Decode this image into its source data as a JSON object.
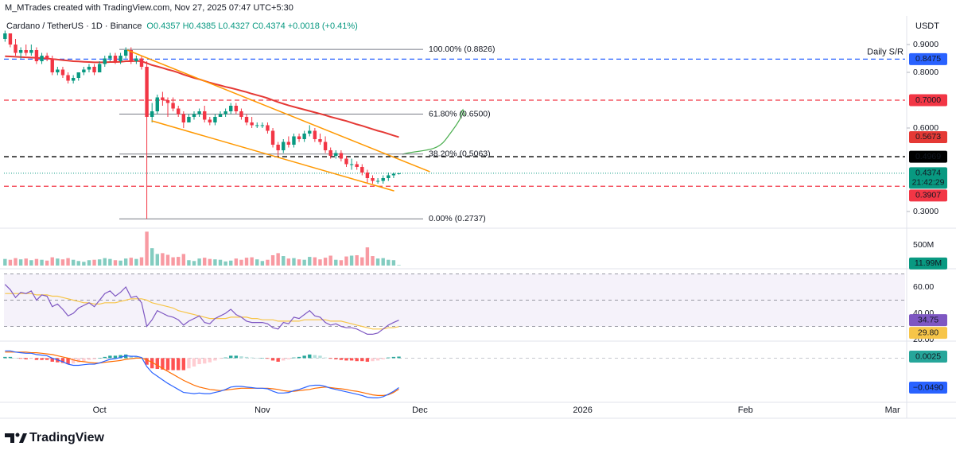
{
  "header": {
    "attribution": "M_MTrades created with TradingView.com, Nov 27, 2025 07:47 UTC+5:30",
    "symbol": "Cardano / TetherUS · 1D · Binance",
    "ohlc": "O0.4357 H0.4385 L0.4327 C0.4374 +0.0018 (+0.41%)",
    "logo": "TradingView"
  },
  "chart_data": {
    "type": "candlestick",
    "currency": "USDT",
    "categories": [
      null,
      null,
      null,
      null,
      null,
      null,
      null,
      null,
      null,
      null,
      null,
      null,
      null,
      null,
      null,
      null,
      null,
      null,
      null,
      null,
      null,
      null,
      null,
      null,
      null,
      null,
      null,
      null,
      null,
      null,
      null,
      null,
      null,
      null,
      null,
      null,
      null,
      null,
      null,
      null,
      null,
      null,
      null,
      null,
      null,
      null,
      null,
      null,
      null,
      null,
      null,
      null,
      null,
      null,
      null,
      null,
      null,
      null,
      null,
      null,
      null,
      null,
      null,
      null,
      null,
      null,
      null,
      null,
      null,
      null,
      null,
      null,
      null,
      null,
      null,
      null
    ],
    "xlim": [
      -0.2,
      171.4
    ],
    "xticks": [
      {
        "value": 18,
        "label": "Oct"
      },
      {
        "value": 49,
        "label": "Nov"
      },
      {
        "value": 79,
        "label": "Dec"
      },
      {
        "value": 110,
        "label": "2026"
      },
      {
        "value": 141,
        "label": "Feb"
      },
      {
        "value": 169,
        "label": "Mar"
      }
    ],
    "open": [
      0.92,
      0.94,
      0.9,
      0.87,
      0.88,
      0.87,
      0.88,
      0.84,
      0.86,
      0.85,
      0.8,
      0.81,
      0.79,
      0.77,
      0.78,
      0.8,
      0.81,
      0.82,
      0.8,
      0.83,
      0.85,
      0.86,
      0.84,
      0.86,
      0.88,
      0.84,
      0.85,
      0.82,
      0.64,
      0.66,
      0.71,
      0.7,
      0.69,
      0.67,
      0.65,
      0.62,
      0.64,
      0.65,
      0.66,
      0.63,
      0.62,
      0.64,
      0.65,
      0.66,
      0.68,
      0.66,
      0.64,
      0.62,
      0.61,
      0.61,
      0.61,
      0.59,
      0.54,
      0.52,
      0.55,
      0.54,
      0.57,
      0.56,
      0.58,
      0.59,
      0.56,
      0.55,
      0.52,
      0.5,
      0.51,
      0.49,
      0.47,
      0.47,
      0.46,
      0.44,
      0.42,
      0.41,
      0.41,
      0.42,
      0.43,
      0.4357
    ],
    "high": [
      0.95,
      0.94,
      0.92,
      0.89,
      0.9,
      0.9,
      0.89,
      0.87,
      0.87,
      0.86,
      0.82,
      0.82,
      0.8,
      0.79,
      0.8,
      0.82,
      0.83,
      0.83,
      0.84,
      0.86,
      0.87,
      0.87,
      0.87,
      0.89,
      0.89,
      0.86,
      0.86,
      0.84,
      0.69,
      0.72,
      0.73,
      0.71,
      0.71,
      0.68,
      0.66,
      0.65,
      0.66,
      0.67,
      0.68,
      0.64,
      0.65,
      0.66,
      0.67,
      0.69,
      0.69,
      0.67,
      0.65,
      0.64,
      0.62,
      0.62,
      0.62,
      0.6,
      0.55,
      0.56,
      0.57,
      0.58,
      0.58,
      0.59,
      0.61,
      0.6,
      0.58,
      0.57,
      0.53,
      0.52,
      0.52,
      0.5,
      0.49,
      0.48,
      0.47,
      0.45,
      0.43,
      0.42,
      0.43,
      0.44,
      0.44,
      0.4385
    ],
    "low": [
      0.91,
      0.89,
      0.86,
      0.85,
      0.86,
      0.86,
      0.83,
      0.83,
      0.84,
      0.79,
      0.79,
      0.78,
      0.76,
      0.76,
      0.77,
      0.79,
      0.8,
      0.79,
      0.8,
      0.82,
      0.84,
      0.83,
      0.83,
      0.85,
      0.83,
      0.83,
      0.81,
      0.2737,
      0.62,
      0.65,
      0.68,
      0.64,
      0.66,
      0.64,
      0.6,
      0.62,
      0.63,
      0.64,
      0.62,
      0.61,
      0.61,
      0.64,
      0.64,
      0.65,
      0.65,
      0.63,
      0.61,
      0.6,
      0.6,
      0.6,
      0.58,
      0.53,
      0.5,
      0.51,
      0.53,
      0.53,
      0.55,
      0.55,
      0.57,
      0.55,
      0.54,
      0.51,
      0.49,
      0.49,
      0.48,
      0.46,
      0.45,
      0.45,
      0.43,
      0.4,
      0.4,
      0.4,
      0.4,
      0.41,
      0.42,
      0.4327
    ],
    "close": [
      0.94,
      0.9,
      0.87,
      0.88,
      0.87,
      0.88,
      0.84,
      0.86,
      0.85,
      0.8,
      0.81,
      0.79,
      0.77,
      0.78,
      0.8,
      0.81,
      0.82,
      0.8,
      0.83,
      0.85,
      0.86,
      0.84,
      0.86,
      0.88,
      0.84,
      0.85,
      0.82,
      0.64,
      0.66,
      0.71,
      0.7,
      0.69,
      0.67,
      0.65,
      0.62,
      0.64,
      0.65,
      0.66,
      0.63,
      0.62,
      0.64,
      0.65,
      0.66,
      0.68,
      0.66,
      0.64,
      0.62,
      0.61,
      0.61,
      0.61,
      0.59,
      0.54,
      0.52,
      0.55,
      0.54,
      0.57,
      0.56,
      0.58,
      0.59,
      0.56,
      0.55,
      0.52,
      0.5,
      0.51,
      0.49,
      0.47,
      0.47,
      0.46,
      0.44,
      0.42,
      0.41,
      0.41,
      0.42,
      0.43,
      0.4357,
      0.4374
    ],
    "up_color": "#089981",
    "down_color": "#f23645",
    "ylim": [
      0.2457,
      0.98
    ],
    "yticks": [
      {
        "value": 0.9,
        "label": "0.9000"
      },
      {
        "value": 0.8,
        "label": "0.8000"
      },
      {
        "value": 0.6,
        "label": "0.6000"
      },
      {
        "value": 0.3,
        "label": "0.3000"
      }
    ],
    "ema": {
      "color": "#e53935",
      "values": [
        0.858,
        0.857,
        0.856,
        0.855,
        0.854,
        0.853,
        0.852,
        0.851,
        0.85,
        0.848,
        0.846,
        0.844,
        0.842,
        0.84,
        0.839,
        0.838,
        0.837,
        0.836,
        0.836,
        0.836,
        0.837,
        0.837,
        0.838,
        0.84,
        0.84,
        0.841,
        0.84,
        0.833,
        0.826,
        0.821,
        0.816,
        0.81,
        0.805,
        0.799,
        0.792,
        0.786,
        0.78,
        0.775,
        0.769,
        0.763,
        0.758,
        0.753,
        0.748,
        0.744,
        0.739,
        0.734,
        0.729,
        0.723,
        0.718,
        0.713,
        0.707,
        0.7,
        0.693,
        0.687,
        0.681,
        0.676,
        0.671,
        0.666,
        0.661,
        0.656,
        0.651,
        0.646,
        0.64,
        0.635,
        0.63,
        0.625,
        0.619,
        0.613,
        0.608,
        0.602,
        0.596,
        0.59,
        0.585,
        0.579,
        0.573,
        0.5673
      ],
      "last": {
        "value": 0.5673,
        "label": "0.5673"
      }
    },
    "levels": [
      {
        "value": 0.8475,
        "label": "0.8475",
        "color": "#2962ff",
        "annotation": "Daily S/R"
      },
      {
        "value": 0.7,
        "label": "0.7000",
        "color": "#f23645"
      },
      {
        "value": 0.4969,
        "label": "0.4969",
        "color": "#000000"
      },
      {
        "value": 0.3907,
        "label": "0.3907",
        "color": "#f23645"
      }
    ],
    "fib": {
      "color": "#787b86",
      "lines": [
        {
          "value": 0.8826,
          "label": "100.00% (0.8826)"
        },
        {
          "value": 0.65,
          "label": "61.80% (0.6500)"
        },
        {
          "value": 0.5063,
          "label": "38.20% (0.5063)"
        },
        {
          "value": 0.2737,
          "label": "0.00% (0.2737)"
        }
      ]
    },
    "trendlines": {
      "color": "#ff9800",
      "lines": [
        {
          "x": [
            23.3,
            80.9
          ],
          "y": [
            0.88,
            0.443
          ]
        },
        {
          "x": [
            27.9,
            74.1
          ],
          "y": [
            0.626,
            0.374
          ]
        }
      ]
    },
    "last": {
      "value": 0.4374,
      "label": "0.4374",
      "countdown": "21:42:29",
      "color": "#089981"
    },
    "volume": {
      "ylim": [
        0,
        846
      ],
      "up_color": "rgba(8,153,129,0.5)",
      "down_color": "rgba(242,54,69,0.5)",
      "values": [
        160,
        140,
        180,
        150,
        170,
        130,
        160,
        140,
        120,
        200,
        170,
        150,
        180,
        140,
        110,
        90,
        130,
        140,
        150,
        180,
        160,
        130,
        120,
        170,
        190,
        160,
        200,
        820,
        420,
        280,
        300,
        260,
        200,
        210,
        280,
        130,
        110,
        170,
        190,
        160,
        150,
        140,
        100,
        120,
        170,
        140,
        190,
        200,
        150,
        110,
        140,
        250,
        300,
        230,
        170,
        180,
        150,
        140,
        210,
        200,
        150,
        190,
        240,
        140,
        130,
        220,
        240,
        250,
        200,
        440,
        230,
        170,
        180,
        140,
        130,
        11.99
      ],
      "yticks": [
        {
          "value": 500,
          "label": "500M"
        }
      ],
      "last": {
        "value": 11.99,
        "label": "11.99M",
        "color": "#089981"
      }
    },
    "rsi": {
      "ylim": [
        19.4,
        71.5
      ],
      "band": {
        "upper": 70,
        "middle": 50,
        "lower": 30
      },
      "line": {
        "color": "#7e57c2",
        "values": [
          62,
          58,
          52,
          56,
          55,
          57,
          50,
          54,
          53,
          45,
          47,
          43,
          38,
          40,
          44,
          46,
          48,
          45,
          50,
          55,
          57,
          53,
          56,
          60,
          52,
          53,
          48,
          30,
          35,
          42,
          40,
          38,
          37,
          35,
          31,
          34,
          36,
          38,
          33,
          32,
          36,
          38,
          40,
          43,
          39,
          37,
          34,
          33,
          33,
          33,
          32,
          29,
          28,
          33,
          32,
          37,
          36,
          39,
          42,
          38,
          37,
          33,
          31,
          32,
          30,
          29,
          29,
          28,
          26,
          24,
          24,
          25,
          28,
          31,
          33,
          34.75
        ]
      },
      "ma": {
        "color": "#f7c548",
        "values": [
          55,
          55,
          55,
          55,
          55,
          55,
          54,
          54,
          54,
          53,
          53,
          52,
          51,
          50,
          49,
          48,
          48,
          47,
          47,
          48,
          48,
          48,
          49,
          50,
          51,
          51,
          51,
          50,
          48,
          47,
          46,
          45,
          44,
          42,
          41,
          40,
          39,
          38,
          37,
          36,
          36,
          36,
          36,
          37,
          37,
          37,
          37,
          36,
          36,
          35,
          35,
          35,
          34,
          34,
          34,
          34,
          34,
          35,
          35,
          35,
          35,
          35,
          34,
          34,
          34,
          33,
          32,
          31,
          30,
          29,
          28,
          28,
          28,
          29,
          29,
          29.8
        ]
      },
      "yticks": [
        {
          "value": 60,
          "label": "60.00"
        },
        {
          "value": 40,
          "label": "40.00"
        },
        {
          "value": 20,
          "label": "20.00"
        }
      ],
      "last": [
        {
          "value": 34.75,
          "label": "34.75",
          "color": "#7e57c2"
        },
        {
          "value": 29.8,
          "label": "29.80",
          "color": "#f7c548"
        }
      ]
    },
    "macd": {
      "ylim": [
        -0.0721,
        0.0243
      ],
      "zero_line": 0,
      "macd": {
        "color": "#2962ff",
        "values": [
          0.012,
          0.012,
          0.01,
          0.009,
          0.008,
          0.008,
          0.006,
          0.005,
          0.004,
          0.0,
          -0.003,
          -0.006,
          -0.01,
          -0.012,
          -0.012,
          -0.011,
          -0.01,
          -0.01,
          -0.008,
          -0.005,
          -0.002,
          -0.001,
          0.001,
          0.004,
          0.003,
          0.003,
          0.001,
          -0.014,
          -0.024,
          -0.03,
          -0.036,
          -0.042,
          -0.047,
          -0.052,
          -0.057,
          -0.058,
          -0.059,
          -0.058,
          -0.059,
          -0.059,
          -0.057,
          -0.055,
          -0.052,
          -0.048,
          -0.047,
          -0.047,
          -0.048,
          -0.049,
          -0.05,
          -0.05,
          -0.051,
          -0.055,
          -0.058,
          -0.058,
          -0.057,
          -0.054,
          -0.052,
          -0.049,
          -0.046,
          -0.045,
          -0.045,
          -0.047,
          -0.05,
          -0.052,
          -0.054,
          -0.056,
          -0.058,
          -0.06,
          -0.062,
          -0.065,
          -0.066,
          -0.066,
          -0.064,
          -0.06,
          -0.055,
          -0.049
        ]
      },
      "signal": {
        "color": "#ff6d00",
        "values": [
          0.01,
          0.01,
          0.01,
          0.01,
          0.01,
          0.009,
          0.009,
          0.008,
          0.007,
          0.006,
          0.004,
          0.002,
          0.0,
          -0.003,
          -0.005,
          -0.006,
          -0.007,
          -0.008,
          -0.008,
          -0.007,
          -0.006,
          -0.005,
          -0.004,
          -0.002,
          -0.001,
          0.0,
          0.0,
          -0.003,
          -0.007,
          -0.012,
          -0.017,
          -0.022,
          -0.027,
          -0.032,
          -0.037,
          -0.041,
          -0.045,
          -0.048,
          -0.05,
          -0.052,
          -0.053,
          -0.054,
          -0.053,
          -0.052,
          -0.051,
          -0.05,
          -0.05,
          -0.05,
          -0.05,
          -0.05,
          -0.05,
          -0.051,
          -0.052,
          -0.054,
          -0.055,
          -0.055,
          -0.054,
          -0.053,
          -0.052,
          -0.05,
          -0.049,
          -0.048,
          -0.049,
          -0.05,
          -0.051,
          -0.052,
          -0.054,
          -0.055,
          -0.057,
          -0.059,
          -0.061,
          -0.062,
          -0.062,
          -0.061,
          -0.057,
          -0.0515
        ]
      },
      "hist": {
        "colors": [
          "#26a69a",
          "#b2dfdb",
          "#ff5252",
          "#ffcdd2"
        ],
        "values": [
          0.002,
          0.002,
          0.0,
          -0.001,
          -0.002,
          -0.001,
          -0.003,
          -0.003,
          -0.003,
          -0.006,
          -0.007,
          -0.008,
          -0.01,
          -0.009,
          -0.007,
          -0.005,
          -0.003,
          -0.002,
          0.0,
          0.002,
          0.004,
          0.004,
          0.005,
          0.006,
          0.004,
          0.003,
          0.001,
          -0.011,
          -0.017,
          -0.018,
          -0.019,
          -0.02,
          -0.02,
          -0.02,
          -0.02,
          -0.017,
          -0.014,
          -0.01,
          -0.009,
          -0.007,
          -0.004,
          -0.001,
          0.001,
          0.004,
          0.004,
          0.003,
          0.002,
          0.001,
          0.0,
          0.0,
          -0.001,
          -0.004,
          -0.006,
          -0.004,
          -0.002,
          0.001,
          0.002,
          0.004,
          0.006,
          0.005,
          0.004,
          0.001,
          -0.001,
          -0.002,
          -0.003,
          -0.004,
          -0.004,
          -0.005,
          -0.005,
          -0.006,
          -0.005,
          -0.004,
          -0.002,
          0.001,
          0.002,
          0.0025
        ]
      },
      "last": [
        {
          "value": 0.0025,
          "label": "0.0025",
          "color": "#26a69a"
        },
        {
          "value": -0.049,
          "label": "−0.0490",
          "color": "#2962ff"
        }
      ]
    }
  }
}
